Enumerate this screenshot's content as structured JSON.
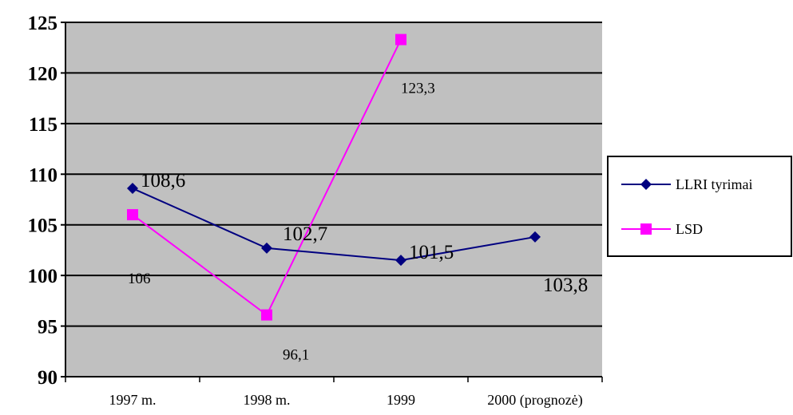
{
  "chart_data": {
    "type": "line",
    "categories": [
      "1997 m.",
      "1998 m.",
      "1999",
      "2000 (prognozė)"
    ],
    "series": [
      {
        "name": "LLRI tyrimai",
        "values": [
          108.6,
          102.7,
          101.5,
          103.8
        ],
        "labels": [
          "108,6",
          "102,7",
          "101,5",
          "103,8"
        ],
        "color": "#000080",
        "marker": "diamond"
      },
      {
        "name": "LSD",
        "values": [
          106,
          96.1,
          123.3,
          null
        ],
        "labels": [
          "106",
          "96,1",
          "123,3",
          ""
        ],
        "color": "#FF00FF",
        "marker": "square"
      }
    ],
    "ylim": [
      90,
      125
    ],
    "yticks": [
      "90",
      "95",
      "100",
      "105",
      "110",
      "115",
      "120",
      "125"
    ],
    "plot_background": "#C0C0C0",
    "grid": true,
    "legend_position": "right"
  }
}
